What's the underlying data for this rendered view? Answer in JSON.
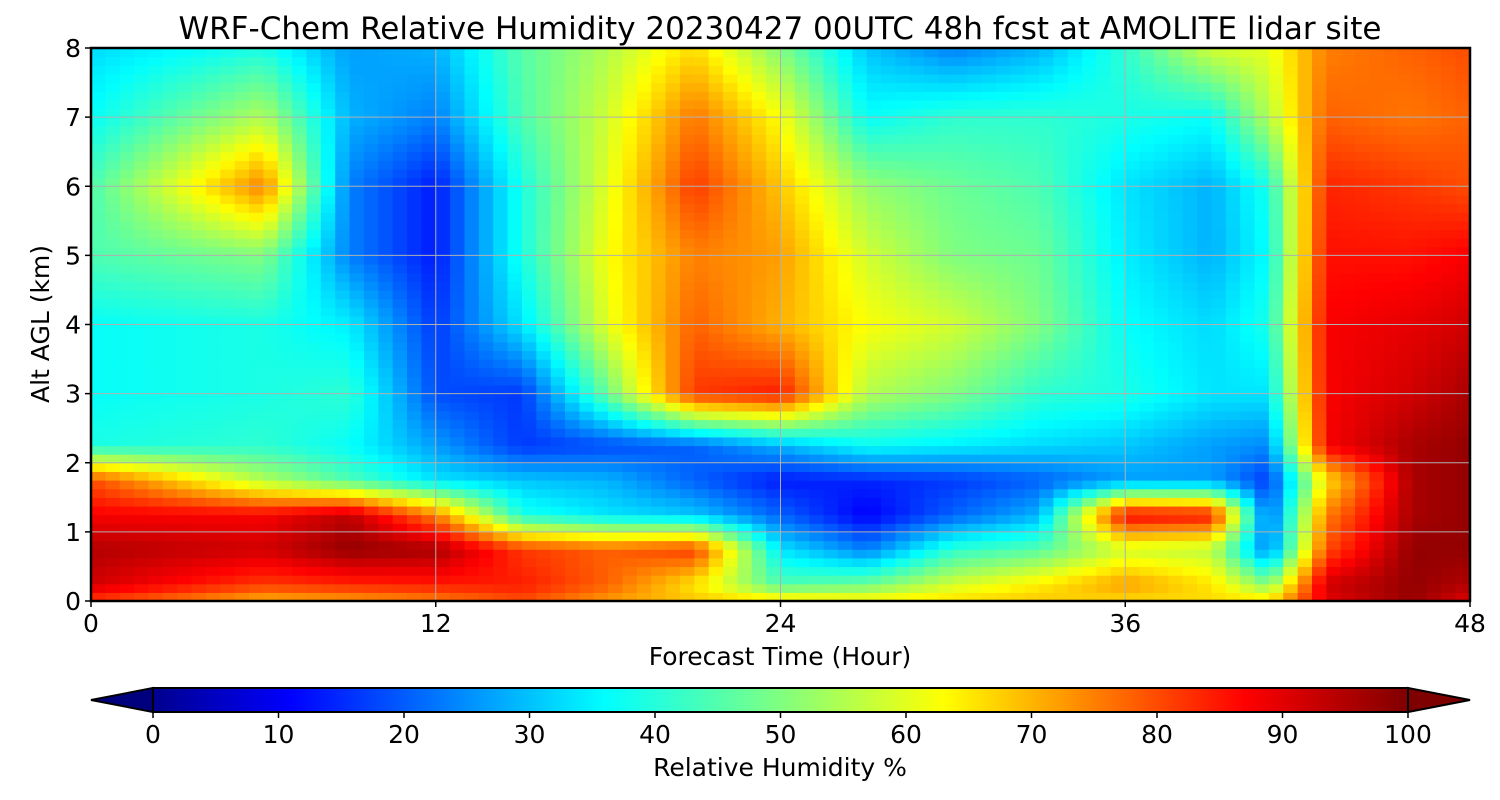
{
  "chart_data": {
    "type": "heatmap",
    "title": "WRF-Chem Relative Humidity 20230427 00UTC 48h fcst at AMOLITE lidar site",
    "xlabel": "Forecast Time (Hour)",
    "ylabel": "Alt AGL (km)",
    "xlim": [
      0,
      48
    ],
    "ylim": [
      0,
      8
    ],
    "x_ticks": [
      "0",
      "12",
      "24",
      "36",
      "48"
    ],
    "y_ticks": [
      "0",
      "1",
      "2",
      "3",
      "4",
      "5",
      "6",
      "7",
      "8"
    ],
    "grid": true,
    "colorbar": {
      "label": "Relative Humidity %",
      "range": [
        0,
        100
      ],
      "extend": "both",
      "colormap": "jet",
      "ticks": [
        "0",
        "10",
        "20",
        "30",
        "40",
        "50",
        "60",
        "70",
        "80",
        "90",
        "100"
      ]
    },
    "z_units": "%",
    "z_grid": {
      "x": [
        0,
        6,
        9,
        12,
        15,
        18,
        21,
        24,
        27,
        30,
        33,
        36,
        39,
        41,
        43,
        46,
        48
      ],
      "y": [
        0,
        0.25,
        0.75,
        1.25,
        1.75,
        2.25,
        3,
        4,
        5,
        6,
        7,
        8
      ],
      "values": [
        [
          82,
          70,
          72,
          75,
          80,
          72,
          68,
          66,
          64,
          66,
          68,
          66,
          66,
          66,
          90,
          98,
          90
        ],
        [
          92,
          82,
          84,
          85,
          85,
          78,
          65,
          45,
          48,
          58,
          64,
          72,
          65,
          50,
          92,
          98,
          95
        ],
        [
          95,
          92,
          98,
          96,
          82,
          78,
          82,
          35,
          25,
          42,
          46,
          58,
          56,
          25,
          80,
          98,
          98
        ],
        [
          88,
          88,
          94,
          75,
          40,
          35,
          32,
          22,
          12,
          22,
          30,
          88,
          86,
          22,
          75,
          96,
          98
        ],
        [
          80,
          55,
          45,
          35,
          32,
          30,
          22,
          15,
          16,
          18,
          22,
          28,
          28,
          18,
          65,
          96,
          98
        ],
        [
          40,
          42,
          38,
          28,
          18,
          20,
          22,
          30,
          38,
          36,
          34,
          32,
          28,
          26,
          88,
          96,
          98
        ],
        [
          38,
          40,
          42,
          20,
          18,
          48,
          82,
          85,
          55,
          50,
          42,
          40,
          35,
          35,
          88,
          92,
          96
        ],
        [
          38,
          40,
          36,
          18,
          35,
          60,
          78,
          70,
          62,
          58,
          50,
          38,
          34,
          40,
          88,
          90,
          92
        ],
        [
          45,
          50,
          25,
          15,
          40,
          62,
          75,
          72,
          58,
          50,
          48,
          36,
          30,
          38,
          86,
          86,
          88
        ],
        [
          45,
          75,
          25,
          15,
          40,
          60,
          82,
          68,
          52,
          48,
          45,
          35,
          30,
          40,
          84,
          82,
          80
        ],
        [
          38,
          55,
          30,
          25,
          45,
          58,
          76,
          62,
          38,
          42,
          42,
          40,
          38,
          55,
          78,
          76,
          78
        ],
        [
          34,
          40,
          28,
          30,
          46,
          55,
          66,
          50,
          32,
          25,
          30,
          42,
          58,
          60,
          75,
          78,
          80
        ]
      ]
    }
  }
}
